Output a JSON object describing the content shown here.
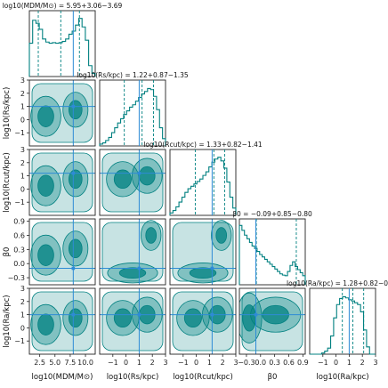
{
  "chart_data": {
    "type": "corner",
    "fill_color": "#008080",
    "truth_line_color": "#2e8bd6",
    "parameters": [
      {
        "key": "mdm",
        "axis_label": "log10(MDM/M⊙)",
        "title": "log10(MDM/M⊙) = 5.95+3.06−3.69",
        "median": 5.95,
        "err_plus": 3.06,
        "err_minus": 3.69,
        "truth": 8.0,
        "range": [
          0.8,
          11.6
        ],
        "ticks": [
          2.5,
          5.0,
          7.5,
          10.0
        ],
        "tick_labels": [
          "2.5",
          "5.0",
          "7.5",
          "10.0"
        ],
        "hist": [
          0.55,
          0.93,
          0.88,
          0.78,
          0.62,
          0.57,
          0.55,
          0.56,
          0.55,
          0.56,
          0.58,
          0.62,
          0.7,
          0.75,
          0.85,
          0.96,
          0.82,
          0.6,
          0.18,
          0.05
        ]
      },
      {
        "key": "rs",
        "axis_label": "log10(Rs/kpc)",
        "title": "log10(Rs/kpc) = 1.22+0.87−1.35",
        "median": 1.22,
        "err_plus": 0.87,
        "err_minus": 1.35,
        "truth": 1.0,
        "range": [
          -2.0,
          3.0
        ],
        "ticks": [
          -1,
          0,
          1,
          2,
          3
        ],
        "tick_labels": [
          "−1",
          "0",
          "1",
          "2",
          "3"
        ],
        "hist": [
          0.03,
          0.05,
          0.09,
          0.14,
          0.22,
          0.3,
          0.38,
          0.45,
          0.52,
          0.58,
          0.64,
          0.68,
          0.74,
          0.8,
          0.86,
          0.9,
          0.95,
          0.93,
          0.82,
          0.6,
          0.3,
          0.12
        ]
      },
      {
        "key": "rcut",
        "axis_label": "log10(Rcut/kpc)",
        "title": "log10(Rcut/kpc) = 1.33+0.82−1.41",
        "median": 1.33,
        "err_plus": 0.82,
        "err_minus": 1.41,
        "truth": 1.2,
        "range": [
          -2.0,
          3.0
        ],
        "ticks": [
          -1,
          0,
          1,
          2,
          3
        ],
        "tick_labels": [
          "−1",
          "0",
          "1",
          "2",
          "3"
        ],
        "hist": [
          0.04,
          0.08,
          0.14,
          0.22,
          0.3,
          0.38,
          0.44,
          0.48,
          0.52,
          0.56,
          0.6,
          0.66,
          0.72,
          0.8,
          0.88,
          0.93,
          0.96,
          0.9,
          0.78,
          0.55,
          0.3,
          0.12
        ]
      },
      {
        "key": "beta",
        "axis_label": "β0",
        "title": "β0 = −0.09+0.85−0.80",
        "median": -0.09,
        "err_plus": 0.85,
        "err_minus": 0.8,
        "truth": -0.1,
        "range": [
          -0.45,
          0.95
        ],
        "ticks": [
          -0.3,
          0.0,
          0.3,
          0.6,
          0.9
        ],
        "tick_labels": [
          "−0.3",
          "0.0",
          "0.3",
          "0.6",
          "0.9"
        ],
        "hist": [
          0.98,
          0.9,
          0.82,
          0.76,
          0.7,
          0.64,
          0.6,
          0.55,
          0.5,
          0.46,
          0.42,
          0.38,
          0.34,
          0.3,
          0.26,
          0.22,
          0.18,
          0.16,
          0.15,
          0.22,
          0.32,
          0.38,
          0.3,
          0.25,
          0.2,
          0.15
        ]
      },
      {
        "key": "ra",
        "axis_label": "log10(Ra/kpc)",
        "title": "log10(Ra/kpc) = 1.28+0.82−0.80",
        "median": 1.28,
        "err_plus": 0.82,
        "err_minus": 0.8,
        "truth": 1.0,
        "range": [
          -2.0,
          3.0
        ],
        "ticks": [
          -1,
          0,
          1,
          2,
          3
        ],
        "tick_labels": [
          "−1",
          "0",
          "1",
          "2",
          "3"
        ],
        "hist": [
          0.0,
          0.0,
          0.0,
          0.0,
          0.02,
          0.05,
          0.1,
          0.3,
          0.6,
          0.82,
          0.92,
          0.95,
          0.93,
          0.9,
          0.88,
          0.85,
          0.82,
          0.7,
          0.4,
          0.12,
          0.0,
          0.0
        ]
      }
    ],
    "ylabel_ticks": {
      "rs": [
        "3",
        "2",
        "1",
        "0",
        "−1"
      ],
      "rcut": [
        "3",
        "2",
        "1",
        "0",
        "−1"
      ],
      "beta": [
        "0.9",
        "0.6",
        "0.3",
        "0.0",
        "−0.3"
      ],
      "ra": [
        "3",
        "2",
        "1",
        "0",
        "−1"
      ]
    }
  }
}
